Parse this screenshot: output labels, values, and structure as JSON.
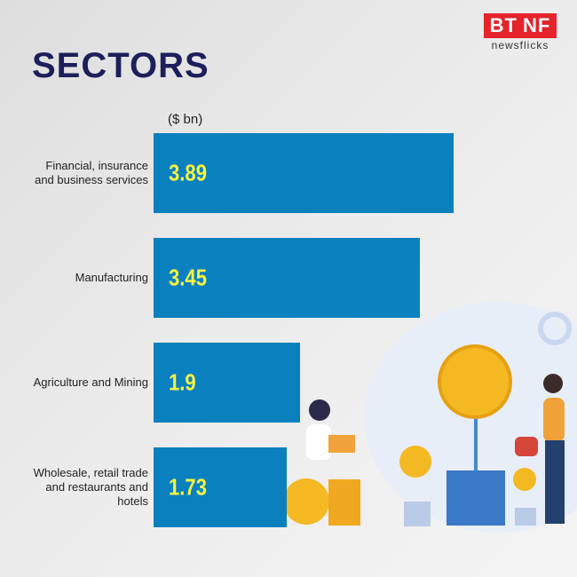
{
  "logo": {
    "brand": "BT",
    "suffix": "NF",
    "tagline": "newsflicks"
  },
  "chart_data": {
    "type": "bar",
    "orientation": "horizontal",
    "title": "SECTORS",
    "unit_label": "($ bn)",
    "categories": [
      "Financial, insurance and business services",
      "Manufacturing",
      "Agriculture and Mining",
      "Wholesale, retail trade and restaurants and hotels"
    ],
    "values": [
      3.89,
      3.45,
      1.9,
      1.73
    ],
    "color": "#0b80bf",
    "label_color": "#f3f542"
  }
}
